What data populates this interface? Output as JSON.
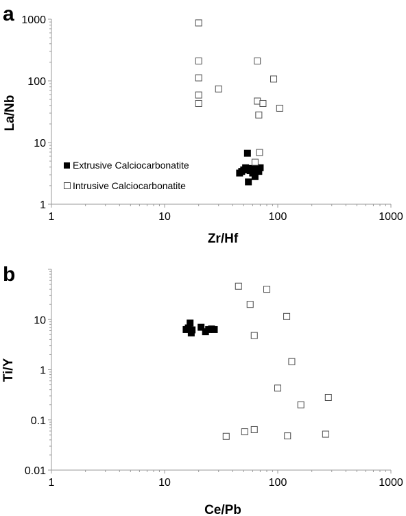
{
  "colors": {
    "filled": "#000000",
    "open_stroke": "#4a4a4a",
    "open_fill": "#ffffff",
    "axis": "#9a9a9a"
  },
  "chart_data": [
    {
      "panel": "a",
      "type": "scatter",
      "xlabel": "Zr/Hf",
      "ylabel": "La/Nb",
      "xscale": "log",
      "yscale": "log",
      "xlim": [
        1,
        1000
      ],
      "ylim": [
        1,
        1000
      ],
      "xticks": [
        "1",
        "10",
        "100",
        "1000"
      ],
      "yticks": [
        "1",
        "10",
        "100",
        "1000"
      ],
      "legend_position": "bottom-left",
      "grid": false,
      "series": [
        {
          "name": "Extrusive Calciocarbonatite",
          "marker": "filled-square",
          "points": [
            [
              46,
              3.2
            ],
            [
              48,
              3.4
            ],
            [
              50,
              3.6
            ],
            [
              52,
              3.9
            ],
            [
              54,
              6.7
            ],
            [
              55,
              2.3
            ],
            [
              57,
              3.5
            ],
            [
              58,
              3.8
            ],
            [
              60,
              3.2
            ],
            [
              62,
              3.6
            ],
            [
              63,
              2.8
            ],
            [
              66,
              3.8
            ],
            [
              68,
              3.4
            ],
            [
              70,
              3.9
            ]
          ]
        },
        {
          "name": "Intrusive Calciocarbonatite",
          "marker": "open-square",
          "points": [
            [
              20,
              870
            ],
            [
              20,
              210
            ],
            [
              20,
              112
            ],
            [
              20,
              59
            ],
            [
              20,
              43
            ],
            [
              30,
              74
            ],
            [
              66,
              210
            ],
            [
              66,
              47
            ],
            [
              68,
              28
            ],
            [
              69,
              6.9
            ],
            [
              74,
              43
            ],
            [
              92,
              107
            ],
            [
              104,
              36
            ],
            [
              63,
              4.8
            ]
          ]
        }
      ]
    },
    {
      "panel": "b",
      "type": "scatter",
      "xlabel": "Ce/Pb",
      "ylabel": "Ti/Y",
      "xscale": "log",
      "yscale": "log",
      "xlim": [
        1,
        1000
      ],
      "ylim": [
        0.01,
        100
      ],
      "xticks": [
        "1",
        "10",
        "100",
        "1000"
      ],
      "yticks": [
        "0.01",
        "0.1",
        "1",
        "10"
      ],
      "grid": false,
      "series": [
        {
          "name": "Extrusive Calciocarbonatite",
          "marker": "filled-square",
          "points": [
            [
              15.5,
              6.3
            ],
            [
              16.2,
              6.8
            ],
            [
              16.8,
              8.5
            ],
            [
              17.2,
              5.4
            ],
            [
              17.5,
              6.2
            ],
            [
              21,
              7
            ],
            [
              23,
              5.7
            ],
            [
              24.5,
              6.3
            ],
            [
              26,
              6.5
            ],
            [
              27.5,
              6.3
            ]
          ]
        },
        {
          "name": "Intrusive Calciocarbonatite",
          "marker": "open-square",
          "points": [
            [
              45,
              46
            ],
            [
              57,
              20
            ],
            [
              62,
              4.8
            ],
            [
              80,
              40
            ],
            [
              120,
              11.5
            ],
            [
              133,
              1.45
            ],
            [
              100,
              0.43
            ],
            [
              160,
              0.2
            ],
            [
              280,
              0.28
            ],
            [
              35,
              0.047
            ],
            [
              51,
              0.058
            ],
            [
              62,
              0.064
            ],
            [
              122,
              0.048
            ],
            [
              265,
              0.052
            ]
          ]
        }
      ]
    }
  ]
}
